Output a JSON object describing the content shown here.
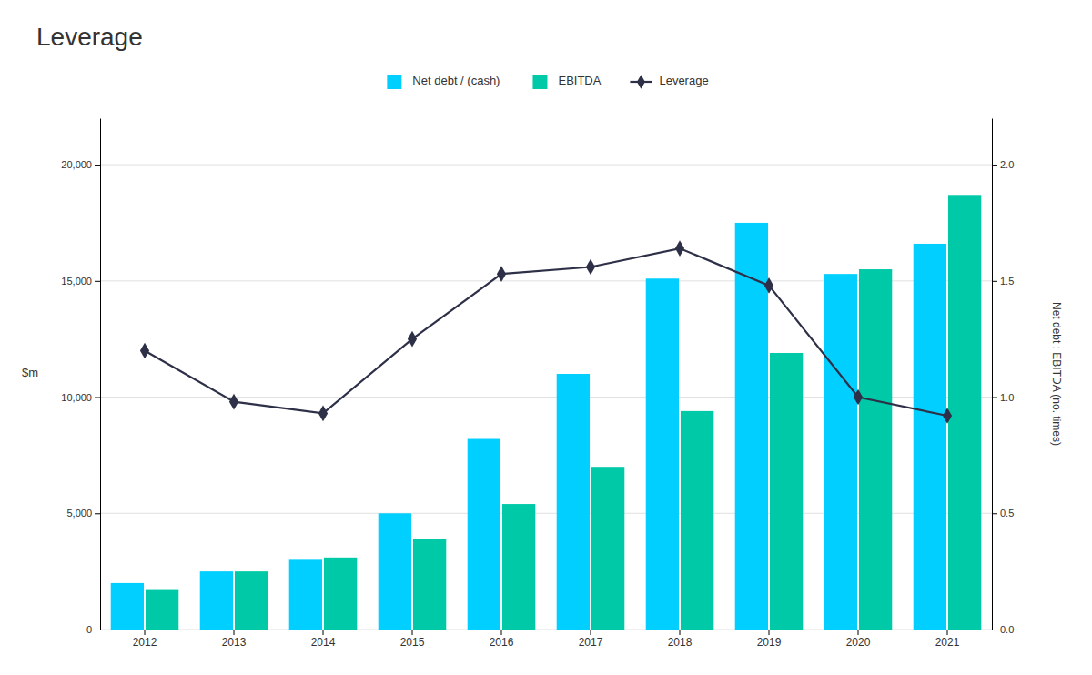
{
  "chart_data": {
    "type": "bar",
    "title": "Leverage",
    "ylabel": "$m",
    "y2label": "Net debt : EBITDA (no. times)",
    "categories": [
      "2012",
      "2013",
      "2014",
      "2015",
      "2016",
      "2017",
      "2018",
      "2019",
      "2020",
      "2021"
    ],
    "series": [
      {
        "name": "Net debt / (cash)",
        "color": "#00CFFF",
        "values": [
          2000,
          2500,
          3000,
          5000,
          8200,
          11000,
          15100,
          17500,
          15300,
          16600
        ]
      },
      {
        "name": "EBITDA",
        "color": "#00C9A7",
        "values": [
          1700,
          2500,
          3100,
          3900,
          5400,
          7000,
          9400,
          11900,
          15500,
          18700
        ]
      },
      {
        "name": "Leverage",
        "color": "#2d3047",
        "type": "line",
        "marker": "diamond",
        "axis": "y2",
        "values": [
          1.2,
          0.98,
          0.93,
          1.25,
          1.53,
          1.56,
          1.64,
          1.48,
          1.0,
          0.92
        ]
      }
    ],
    "ylim": [
      0,
      22000
    ],
    "yticks": [
      0,
      {
        "value": 5000,
        "label": "5,000"
      },
      {
        "value": 10000,
        "label": "10,000"
      },
      {
        "value": 15000,
        "label": "15,000"
      },
      {
        "value": 20000,
        "label": "20,000"
      }
    ],
    "y2lim": [
      0,
      2.2
    ],
    "y2ticks": [
      {
        "value": 0,
        "label": "0.0"
      },
      0.5,
      {
        "value": 1,
        "label": "1.0"
      },
      1.5,
      {
        "value": 2,
        "label": "2.0"
      }
    ],
    "grid": true,
    "legend": "top"
  }
}
